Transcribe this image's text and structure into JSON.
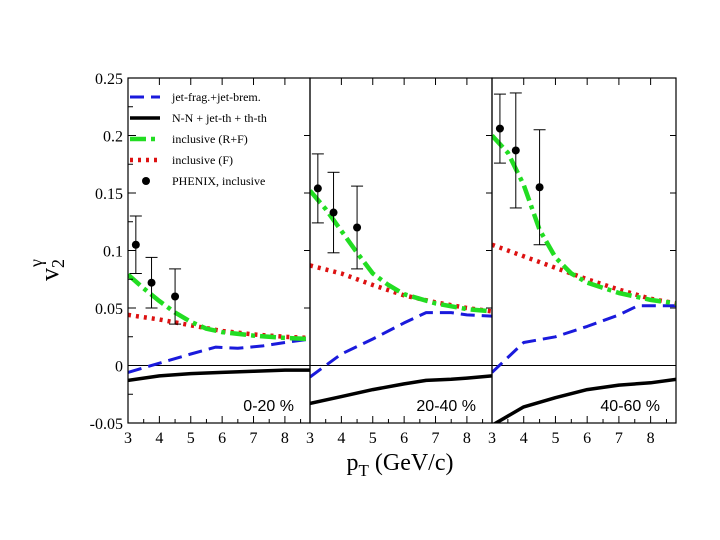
{
  "chart_data": {
    "type": "line",
    "ylabel": "v",
    "ylabel_sub": "2",
    "ylabel_sup": "γ",
    "xlabel": "p",
    "xlabel_sub": "T",
    "xlabel_unit": "(GeV/c)",
    "ylim": [
      -0.05,
      0.25
    ],
    "yticks": [
      -0.05,
      0,
      0.05,
      0.1,
      0.15,
      0.2,
      0.25
    ],
    "ytick_labels": [
      "-0.05",
      "0",
      "0.05",
      "0.1",
      "0.15",
      "0.2",
      "0.25"
    ],
    "xlim": [
      3,
      8.8
    ],
    "xticks": [
      3,
      4,
      5,
      6,
      7,
      8
    ],
    "xtick_labels": [
      "3",
      "4",
      "5",
      "6",
      "7",
      "8"
    ],
    "zero_line": true,
    "legend": [
      {
        "key": "jet",
        "label": "jet-frag.+jet-brem.",
        "color": "#1a1adc",
        "style": "dash"
      },
      {
        "key": "nn",
        "label": "N-N + jet-th + th-th",
        "color": "#000000",
        "style": "solid"
      },
      {
        "key": "rf",
        "label": "inclusive (R+F)",
        "color": "#22dd22",
        "style": "dashdot"
      },
      {
        "key": "f",
        "label": "inclusive (F)",
        "color": "#dd1111",
        "style": "dot"
      },
      {
        "key": "phenix",
        "label": "PHENIX, inclusive",
        "color": "#000000",
        "style": "marker"
      }
    ],
    "panels": [
      {
        "label": "0-20 %",
        "series": {
          "jet": {
            "x": [
              3.0,
              4.0,
              5.0,
              5.8,
              6.5,
              7.3,
              8.0,
              8.8
            ],
            "y": [
              -0.006,
              0.002,
              0.01,
              0.016,
              0.015,
              0.017,
              0.02,
              0.023
            ]
          },
          "nn": {
            "x": [
              3.0,
              4.0,
              5.0,
              6.0,
              7.0,
              8.0,
              8.8
            ],
            "y": [
              -0.013,
              -0.009,
              -0.007,
              -0.006,
              -0.005,
              -0.004,
              -0.004
            ]
          },
          "rf": {
            "x": [
              3.0,
              3.5,
              4.0,
              4.5,
              5.0,
              5.5,
              6.0,
              7.0,
              8.0,
              8.8
            ],
            "y": [
              0.079,
              0.067,
              0.056,
              0.046,
              0.038,
              0.032,
              0.029,
              0.026,
              0.024,
              0.023
            ]
          },
          "f": {
            "x": [
              3.0,
              4.0,
              5.0,
              6.0,
              7.0,
              8.0,
              8.8
            ],
            "y": [
              0.044,
              0.04,
              0.035,
              0.03,
              0.027,
              0.025,
              0.024
            ]
          }
        },
        "phenix": [
          {
            "x": 3.25,
            "y": 0.105,
            "err": 0.025
          },
          {
            "x": 3.75,
            "y": 0.072,
            "err": 0.022
          },
          {
            "x": 4.5,
            "y": 0.06,
            "err": 0.024
          }
        ]
      },
      {
        "label": "20-40 %",
        "series": {
          "jet": {
            "x": [
              3.0,
              4.0,
              5.0,
              6.0,
              6.7,
              7.5,
              8.0,
              8.8
            ],
            "y": [
              -0.01,
              0.01,
              0.023,
              0.037,
              0.046,
              0.046,
              0.044,
              0.043
            ]
          },
          "nn": {
            "x": [
              3.0,
              4.0,
              5.0,
              6.0,
              6.7,
              7.5,
              8.0,
              8.8
            ],
            "y": [
              -0.033,
              -0.027,
              -0.021,
              -0.016,
              -0.013,
              -0.012,
              -0.011,
              -0.009
            ]
          },
          "rf": {
            "x": [
              3.0,
              3.5,
              4.0,
              4.5,
              5.0,
              5.5,
              6.0,
              7.0,
              8.0,
              8.8
            ],
            "y": [
              0.152,
              0.136,
              0.117,
              0.098,
              0.08,
              0.07,
              0.062,
              0.054,
              0.049,
              0.047
            ]
          },
          "f": {
            "x": [
              3.0,
              4.0,
              5.0,
              6.0,
              7.0,
              8.0,
              8.8
            ],
            "y": [
              0.087,
              0.08,
              0.07,
              0.061,
              0.055,
              0.05,
              0.047
            ]
          }
        },
        "phenix": [
          {
            "x": 3.25,
            "y": 0.154,
            "err": 0.03
          },
          {
            "x": 3.75,
            "y": 0.133,
            "err": 0.035
          },
          {
            "x": 4.5,
            "y": 0.12,
            "err": 0.036
          }
        ]
      },
      {
        "label": "40-60 %",
        "series": {
          "jet": {
            "x": [
              3.0,
              4.0,
              5.0,
              6.0,
              7.0,
              7.6,
              8.0,
              8.8
            ],
            "y": [
              -0.006,
              0.02,
              0.025,
              0.034,
              0.044,
              0.052,
              0.052,
              0.052
            ]
          },
          "nn": {
            "x": [
              3.0,
              4.0,
              5.0,
              6.0,
              7.0,
              8.0,
              8.8
            ],
            "y": [
              -0.052,
              -0.036,
              -0.028,
              -0.021,
              -0.017,
              -0.015,
              -0.012
            ]
          },
          "rf": {
            "x": [
              3.0,
              3.5,
              4.0,
              4.5,
              5.0,
              5.5,
              6.0,
              7.0,
              8.0,
              8.8
            ],
            "y": [
              0.2,
              0.185,
              0.157,
              0.118,
              0.094,
              0.08,
              0.072,
              0.063,
              0.057,
              0.054
            ]
          },
          "f": {
            "x": [
              3.0,
              4.0,
              5.0,
              6.0,
              7.0,
              8.0,
              8.8
            ],
            "y": [
              0.105,
              0.095,
              0.085,
              0.075,
              0.066,
              0.058,
              0.054
            ]
          }
        },
        "phenix": [
          {
            "x": 3.25,
            "y": 0.206,
            "err": 0.03
          },
          {
            "x": 3.75,
            "y": 0.187,
            "err": 0.05
          },
          {
            "x": 4.5,
            "y": 0.155,
            "err": 0.05
          }
        ]
      }
    ]
  }
}
